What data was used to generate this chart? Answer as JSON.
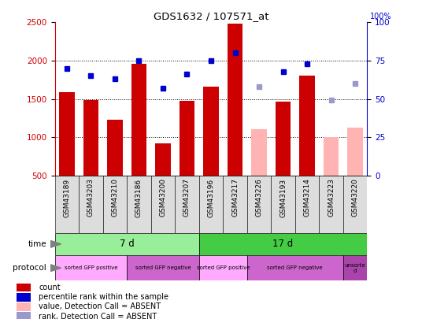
{
  "title": "GDS1632 / 107571_at",
  "samples": [
    "GSM43189",
    "GSM43203",
    "GSM43210",
    "GSM43186",
    "GSM43200",
    "GSM43207",
    "GSM43196",
    "GSM43217",
    "GSM43226",
    "GSM43193",
    "GSM43214",
    "GSM43223",
    "GSM43220"
  ],
  "bar_values": [
    1590,
    1490,
    1230,
    1960,
    920,
    1470,
    1660,
    2480,
    null,
    1460,
    1800,
    null,
    null
  ],
  "bar_absent_values": [
    null,
    null,
    null,
    null,
    null,
    null,
    null,
    null,
    1100,
    null,
    null,
    1000,
    1130
  ],
  "dot_values": [
    70,
    65,
    63,
    75,
    57,
    66,
    75,
    80,
    null,
    68,
    73,
    null,
    null
  ],
  "dot_absent_values": [
    null,
    null,
    null,
    null,
    null,
    null,
    null,
    null,
    58,
    null,
    null,
    49,
    60
  ],
  "ylim_left": [
    500,
    2500
  ],
  "ylim_right": [
    0,
    100
  ],
  "yticks_left": [
    500,
    1000,
    1500,
    2000,
    2500
  ],
  "yticks_right": [
    0,
    25,
    50,
    75,
    100
  ],
  "bar_color": "#cc0000",
  "bar_absent_color": "#ffb3b3",
  "dot_color": "#0000cc",
  "dot_absent_color": "#9999cc",
  "time_groups": [
    {
      "label": "7 d",
      "start": 0,
      "end": 6,
      "color": "#99ee99"
    },
    {
      "label": "17 d",
      "start": 6,
      "end": 13,
      "color": "#44cc44"
    }
  ],
  "protocol_groups": [
    {
      "label": "sorted GFP positive",
      "start": 0,
      "end": 3,
      "color": "#ffaaff"
    },
    {
      "label": "sorted GFP negative",
      "start": 3,
      "end": 6,
      "color": "#cc66cc"
    },
    {
      "label": "sorted GFP positive",
      "start": 6,
      "end": 8,
      "color": "#ffaaff"
    },
    {
      "label": "sorted GFP negative",
      "start": 8,
      "end": 12,
      "color": "#cc66cc"
    },
    {
      "label": "unsorte\nd",
      "start": 12,
      "end": 13,
      "color": "#aa44aa"
    }
  ],
  "legend_items": [
    {
      "label": "count",
      "color": "#cc0000"
    },
    {
      "label": "percentile rank within the sample",
      "color": "#0000cc"
    },
    {
      "label": "value, Detection Call = ABSENT",
      "color": "#ffb3b3"
    },
    {
      "label": "rank, Detection Call = ABSENT",
      "color": "#9999cc"
    }
  ]
}
